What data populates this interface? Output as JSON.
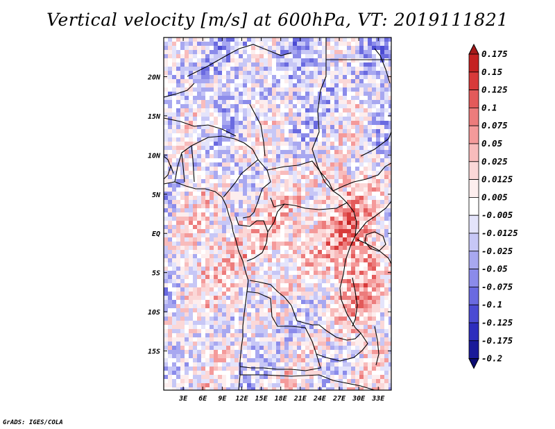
{
  "title": "Vertical velocity [m/s] at 600hPa, VT: 2019111821",
  "credit": "GrADS: IGES/COLA",
  "map": {
    "lon_range": [
      0,
      35
    ],
    "lat_range": [
      -20,
      25
    ],
    "x_ticks": [
      "3E",
      "6E",
      "9E",
      "12E",
      "15E",
      "18E",
      "21E",
      "24E",
      "27E",
      "30E",
      "33E"
    ],
    "y_ticks": [
      "20N",
      "15N",
      "10N",
      "5N",
      "EQ",
      "5S",
      "10S",
      "15S"
    ]
  },
  "colorbar": {
    "labels": [
      "0.175",
      "0.15",
      "0.125",
      "0.1",
      "0.075",
      "0.05",
      "0.025",
      "0.0125",
      "0.005",
      "-0.005",
      "-0.0125",
      "-0.025",
      "-0.05",
      "-0.075",
      "-0.1",
      "-0.125",
      "-0.175",
      "-0.2"
    ],
    "colors": [
      "#a51a1a",
      "#c42222",
      "#d83a3a",
      "#e35a5a",
      "#ec7c7c",
      "#f49a9a",
      "#f8bcbc",
      "#fbd8d8",
      "#fdeeee",
      "#ffffff",
      "#e4e4fb",
      "#c7c7f6",
      "#a8a8f0",
      "#8b8bea",
      "#6a6ae0",
      "#4b4bd3",
      "#2d2dbd",
      "#1a1a99",
      "#0b0b72"
    ]
  }
}
